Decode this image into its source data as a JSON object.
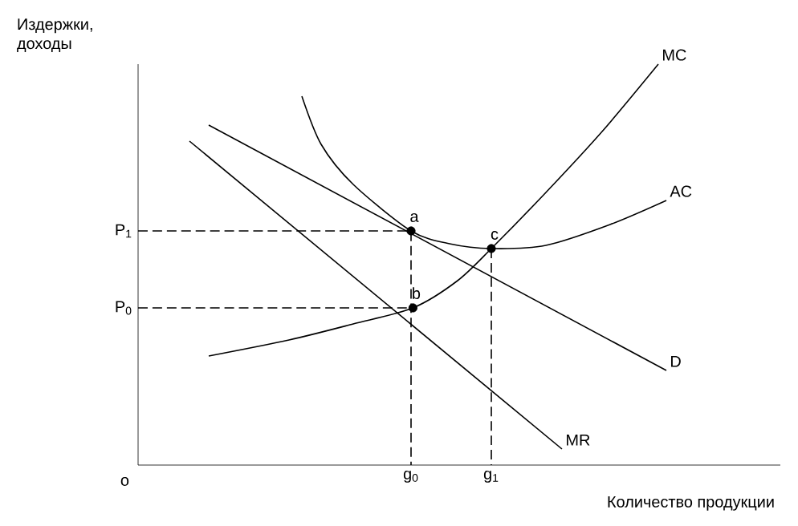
{
  "chart_data": {
    "type": "line",
    "xlabel": "Количество продукции",
    "ylabel": "Издержки, доходы",
    "xlim": [
      0,
      1
    ],
    "ylim": [
      0,
      1
    ],
    "xticks": [
      {
        "value": 0.425,
        "label": "g$_{0}$"
      },
      {
        "value": 0.55,
        "label": "g$_{1}$"
      }
    ],
    "yticks": [
      {
        "value": 0.392,
        "label": "P$_{0}$"
      },
      {
        "value": 0.584,
        "label": "P$_{1}$"
      }
    ],
    "series": [
      {
        "name": "MC",
        "color": "#000000",
        "x": [
          0.11,
          0.235,
          0.335,
          0.428,
          0.4975,
          0.55,
          0.635,
          0.7225,
          0.81
        ],
        "values": [
          0.272,
          0.312,
          0.352,
          0.392,
          0.46,
          0.54,
          0.68,
          0.832,
          1.0
        ]
      },
      {
        "name": "AC",
        "color": "#000000",
        "x": [
          0.255,
          0.285,
          0.335,
          0.425,
          0.485,
          0.55,
          0.635,
          0.735,
          0.8225
        ],
        "values": [
          0.92,
          0.8,
          0.7,
          0.584,
          0.552,
          0.54,
          0.548,
          0.6,
          0.66
        ]
      },
      {
        "name": "D",
        "color": "#000000",
        "x": [
          0.11,
          0.8225
        ],
        "values": [
          0.848,
          0.236
        ]
      },
      {
        "name": "MR",
        "color": "#000000",
        "x": [
          0.08,
          0.66
        ],
        "values": [
          0.808,
          0.04
        ]
      },
      {
        "type": "line",
        "line_style": "dashed",
        "color": "#000000",
        "x": [
          0,
          0.425,
          0.425
        ],
        "values": [
          0.584,
          0.584,
          0
        ]
      },
      {
        "type": "line",
        "line_style": "dashed",
        "color": "#000000",
        "x": [
          0,
          0.428
        ],
        "values": [
          0.392,
          0.392
        ]
      },
      {
        "type": "line",
        "line_style": "dashed",
        "color": "#000000",
        "x": [
          0.55,
          0.55
        ],
        "values": [
          0.54,
          0
        ]
      },
      {
        "type": "scatter",
        "color": "#000000",
        "x": [
          0.425,
          0.428,
          0.55
        ],
        "values": [
          0.584,
          0.392,
          0.54
        ]
      }
    ],
    "annotations": [
      {
        "text": "a",
        "x": 0.425,
        "y": 0.584
      },
      {
        "text": "b",
        "x": 0.428,
        "y": 0.392
      },
      {
        "text": "c",
        "x": 0.55,
        "y": 0.54
      },
      "o"
    ]
  }
}
